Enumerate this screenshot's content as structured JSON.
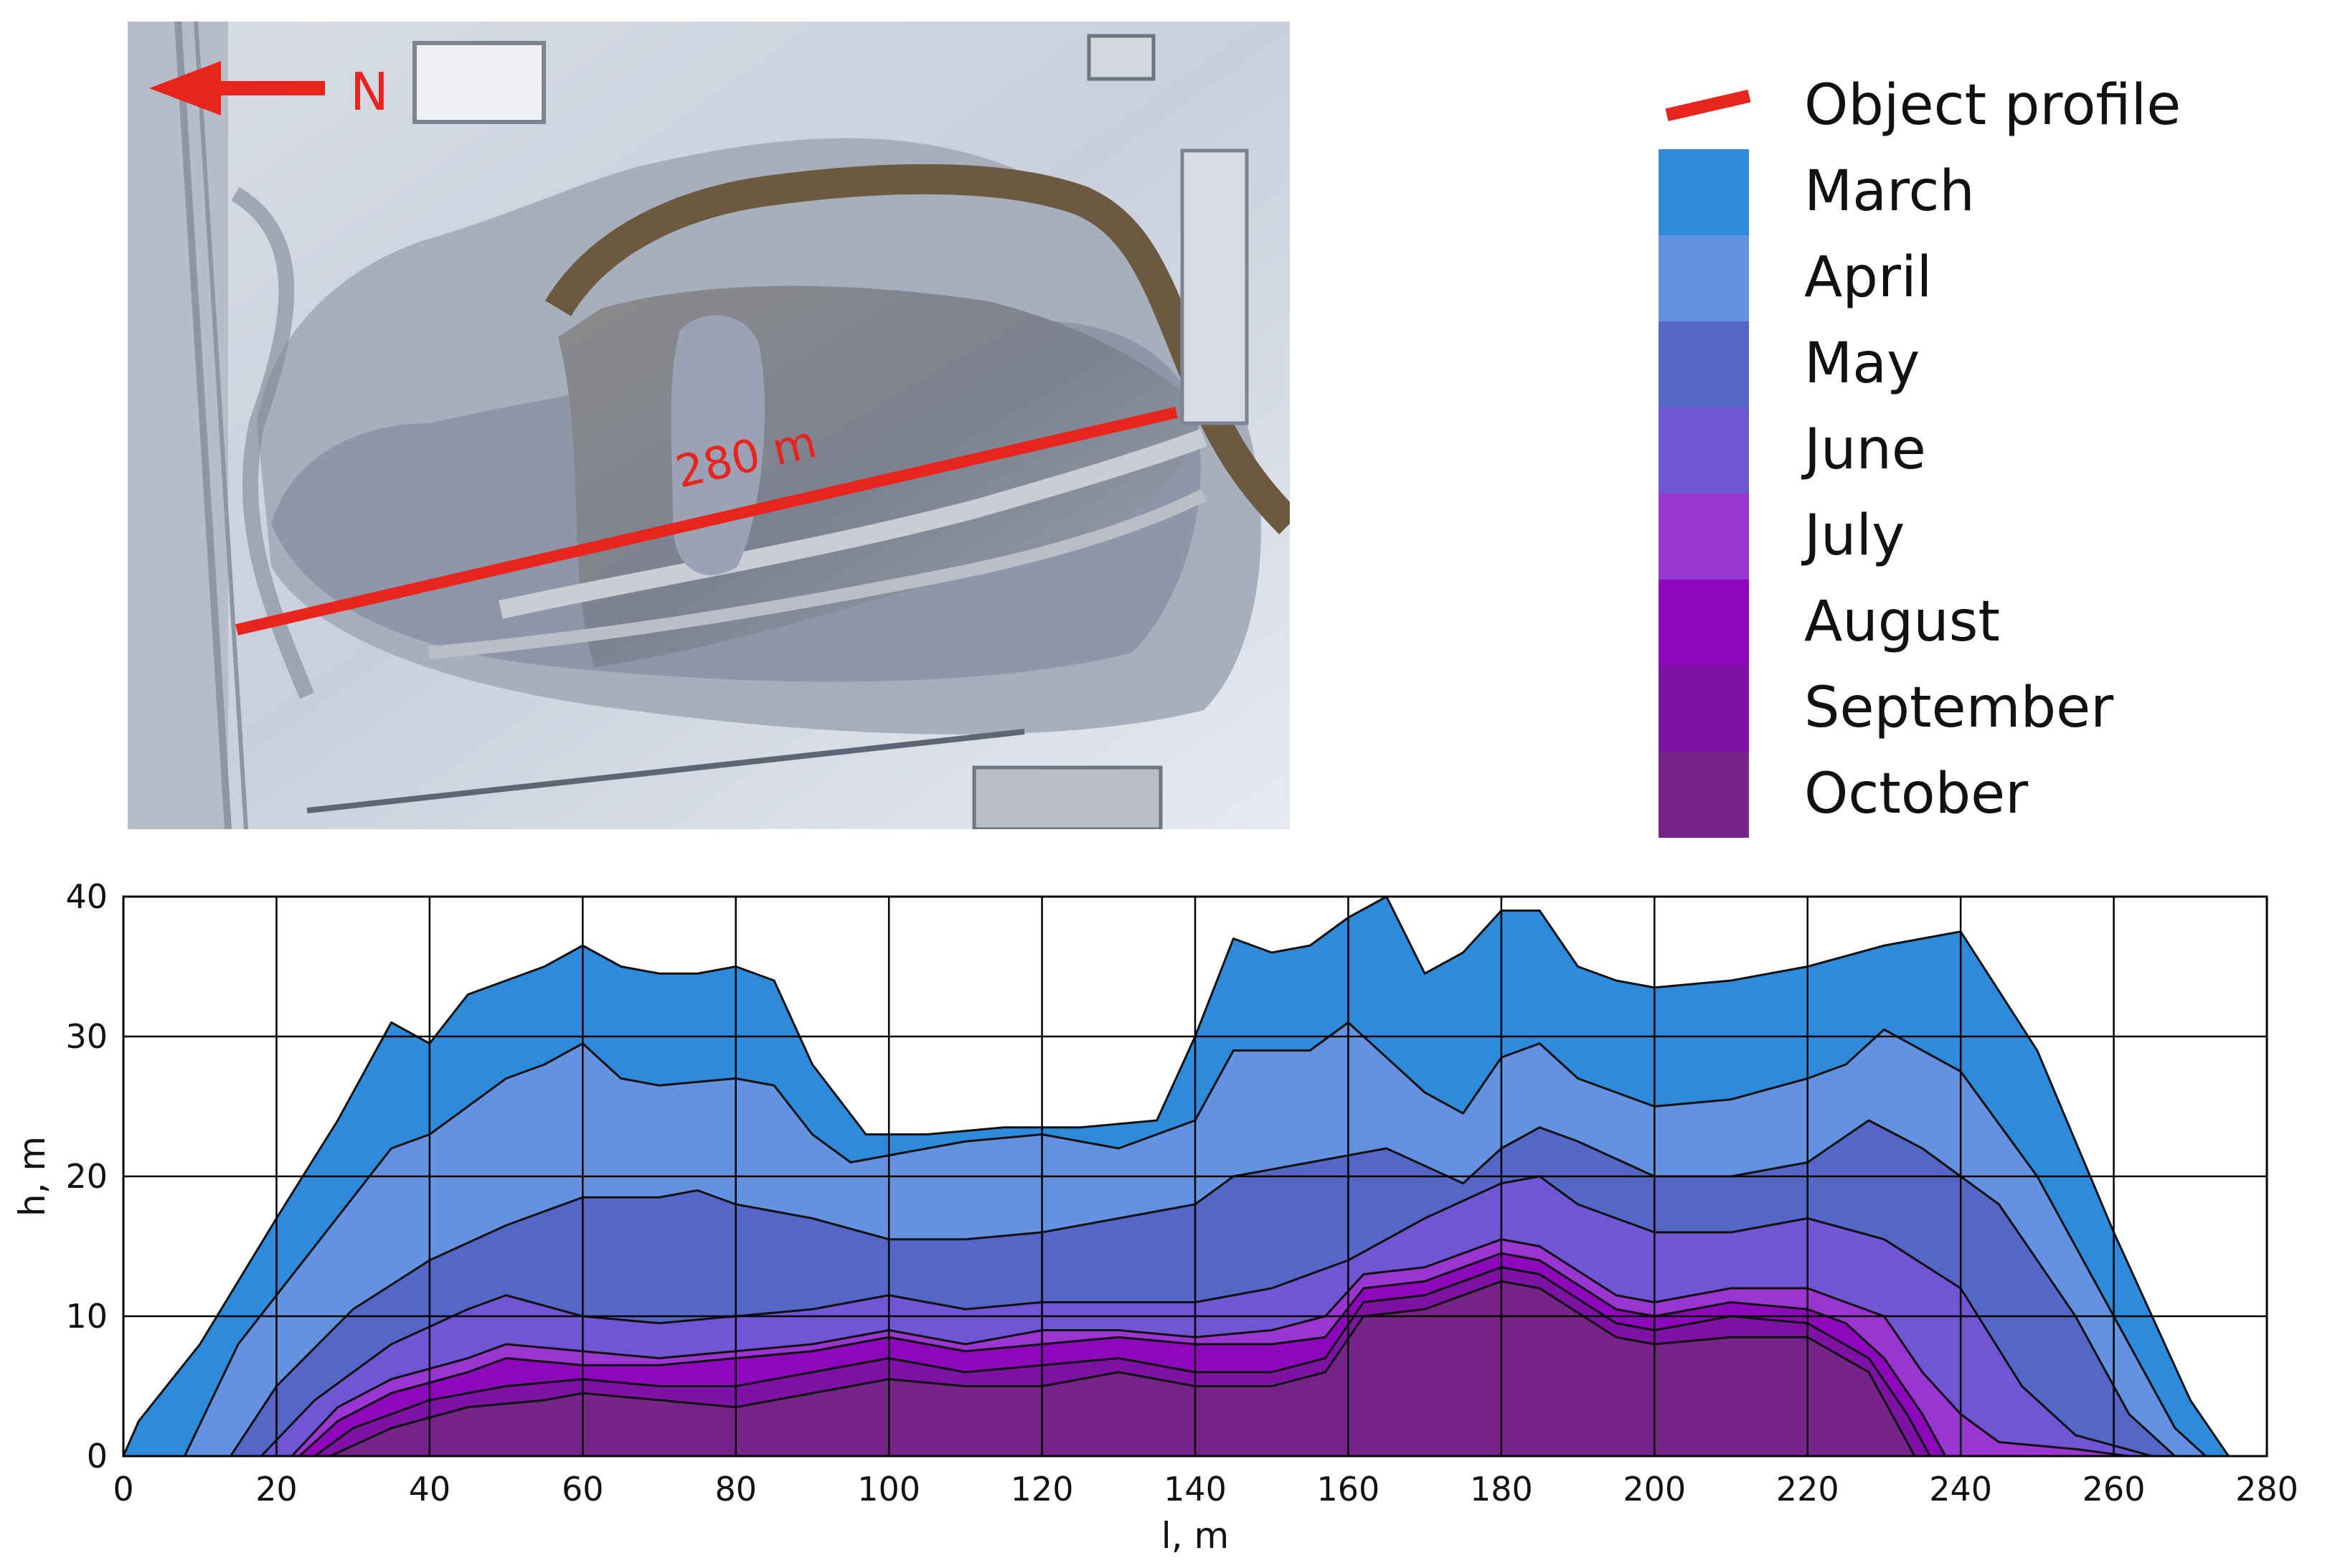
{
  "photo": {
    "north_label": "N",
    "profile_length_label": "280 m"
  },
  "legend": {
    "profile_label": "Object profile",
    "colors": {
      "profile_line": "#e8241f"
    },
    "months": [
      {
        "label": "March",
        "color": "#2e8bdc"
      },
      {
        "label": "April",
        "color": "#6592e0"
      },
      {
        "label": "May",
        "color": "#5567c6"
      },
      {
        "label": "June",
        "color": "#6f56d4"
      },
      {
        "label": "July",
        "color": "#9b35d2"
      },
      {
        "label": "August",
        "color": "#8d08bb"
      },
      {
        "label": "September",
        "color": "#7d12a5"
      },
      {
        "label": "October",
        "color": "#762488"
      }
    ]
  },
  "chart_data": {
    "type": "area",
    "xlabel": "l, m",
    "ylabel": "h, m",
    "xlim": [
      0,
      280
    ],
    "ylim": [
      0,
      40
    ],
    "xticks": [
      0,
      20,
      40,
      60,
      80,
      100,
      120,
      140,
      160,
      180,
      200,
      220,
      240,
      260,
      280
    ],
    "yticks": [
      0,
      10,
      20,
      30,
      40
    ],
    "grid": true,
    "series": [
      {
        "name": "March",
        "color": "#2e8bdc",
        "points": [
          [
            0,
            0
          ],
          [
            2,
            2.5
          ],
          [
            10,
            8
          ],
          [
            20,
            17
          ],
          [
            28,
            24
          ],
          [
            35,
            31
          ],
          [
            40,
            29.5
          ],
          [
            45,
            33
          ],
          [
            50,
            34
          ],
          [
            55,
            35
          ],
          [
            60,
            36.5
          ],
          [
            65,
            35
          ],
          [
            70,
            34.5
          ],
          [
            75,
            34.5
          ],
          [
            80,
            35
          ],
          [
            85,
            34
          ],
          [
            90,
            28
          ],
          [
            97,
            23
          ],
          [
            105,
            23
          ],
          [
            115,
            23.5
          ],
          [
            125,
            23.5
          ],
          [
            135,
            24
          ],
          [
            140,
            30
          ],
          [
            145,
            37
          ],
          [
            150,
            36
          ],
          [
            155,
            36.5
          ],
          [
            160,
            38.5
          ],
          [
            165,
            40
          ],
          [
            170,
            34.5
          ],
          [
            175,
            36
          ],
          [
            180,
            39
          ],
          [
            185,
            39
          ],
          [
            190,
            35
          ],
          [
            195,
            34
          ],
          [
            200,
            33.5
          ],
          [
            210,
            34
          ],
          [
            220,
            35
          ],
          [
            230,
            36.5
          ],
          [
            240,
            37.5
          ],
          [
            250,
            29
          ],
          [
            260,
            16
          ],
          [
            270,
            4
          ],
          [
            275,
            0
          ]
        ]
      },
      {
        "name": "April",
        "color": "#6592e0",
        "points": [
          [
            8,
            0
          ],
          [
            15,
            8
          ],
          [
            25,
            15
          ],
          [
            35,
            22
          ],
          [
            40,
            23
          ],
          [
            50,
            27
          ],
          [
            55,
            28
          ],
          [
            60,
            29.5
          ],
          [
            65,
            27
          ],
          [
            70,
            26.5
          ],
          [
            80,
            27
          ],
          [
            85,
            26.5
          ],
          [
            90,
            23
          ],
          [
            95,
            21
          ],
          [
            100,
            21.5
          ],
          [
            110,
            22.5
          ],
          [
            120,
            23
          ],
          [
            130,
            22
          ],
          [
            140,
            24
          ],
          [
            145,
            29
          ],
          [
            155,
            29
          ],
          [
            160,
            31
          ],
          [
            170,
            26
          ],
          [
            175,
            24.5
          ],
          [
            180,
            28.5
          ],
          [
            185,
            29.5
          ],
          [
            190,
            27
          ],
          [
            200,
            25
          ],
          [
            210,
            25.5
          ],
          [
            220,
            27
          ],
          [
            225,
            28
          ],
          [
            230,
            30.5
          ],
          [
            240,
            27.5
          ],
          [
            250,
            20
          ],
          [
            260,
            10
          ],
          [
            268,
            2
          ],
          [
            272,
            0
          ]
        ]
      },
      {
        "name": "May",
        "color": "#5567c6",
        "points": [
          [
            14,
            0
          ],
          [
            20,
            5
          ],
          [
            30,
            10.5
          ],
          [
            40,
            14
          ],
          [
            50,
            16.5
          ],
          [
            55,
            17.5
          ],
          [
            60,
            18.5
          ],
          [
            70,
            18.5
          ],
          [
            75,
            19
          ],
          [
            80,
            18
          ],
          [
            90,
            17
          ],
          [
            100,
            15.5
          ],
          [
            110,
            15.5
          ],
          [
            120,
            16
          ],
          [
            130,
            17
          ],
          [
            140,
            18
          ],
          [
            145,
            20
          ],
          [
            155,
            21
          ],
          [
            165,
            22
          ],
          [
            175,
            19.5
          ],
          [
            180,
            22
          ],
          [
            185,
            23.5
          ],
          [
            190,
            22.5
          ],
          [
            200,
            20
          ],
          [
            210,
            20
          ],
          [
            220,
            21
          ],
          [
            228,
            24
          ],
          [
            235,
            22
          ],
          [
            245,
            18
          ],
          [
            255,
            10
          ],
          [
            262,
            3
          ],
          [
            268,
            0
          ]
        ]
      },
      {
        "name": "June",
        "color": "#6f56d4",
        "points": [
          [
            18,
            0
          ],
          [
            25,
            4
          ],
          [
            35,
            8
          ],
          [
            45,
            10.5
          ],
          [
            50,
            11.5
          ],
          [
            60,
            10
          ],
          [
            70,
            9.5
          ],
          [
            80,
            10
          ],
          [
            90,
            10.5
          ],
          [
            100,
            11.5
          ],
          [
            110,
            10.5
          ],
          [
            120,
            11
          ],
          [
            130,
            11
          ],
          [
            140,
            11
          ],
          [
            150,
            12
          ],
          [
            160,
            14
          ],
          [
            170,
            17
          ],
          [
            180,
            19.5
          ],
          [
            185,
            20
          ],
          [
            190,
            18
          ],
          [
            200,
            16
          ],
          [
            210,
            16
          ],
          [
            220,
            17
          ],
          [
            230,
            15.5
          ],
          [
            240,
            12
          ],
          [
            248,
            5
          ],
          [
            255,
            1.5
          ],
          [
            265,
            0
          ]
        ]
      },
      {
        "name": "July",
        "color": "#9b35d2",
        "points": [
          [
            22,
            0
          ],
          [
            28,
            3.5
          ],
          [
            35,
            5.5
          ],
          [
            45,
            7
          ],
          [
            50,
            8
          ],
          [
            60,
            7.5
          ],
          [
            70,
            7
          ],
          [
            80,
            7.5
          ],
          [
            90,
            8
          ],
          [
            100,
            9
          ],
          [
            110,
            8
          ],
          [
            120,
            9
          ],
          [
            130,
            9
          ],
          [
            140,
            8.5
          ],
          [
            150,
            9
          ],
          [
            157,
            10
          ],
          [
            162,
            13
          ],
          [
            170,
            13.5
          ],
          [
            180,
            15.5
          ],
          [
            185,
            15
          ],
          [
            195,
            11.5
          ],
          [
            200,
            11
          ],
          [
            210,
            12
          ],
          [
            220,
            12
          ],
          [
            230,
            10
          ],
          [
            235,
            6
          ],
          [
            240,
            3
          ],
          [
            245,
            1
          ],
          [
            255,
            0.5
          ],
          [
            262,
            0
          ]
        ]
      },
      {
        "name": "August",
        "color": "#8d08bb",
        "points": [
          [
            23,
            0
          ],
          [
            28,
            2.5
          ],
          [
            35,
            4.5
          ],
          [
            45,
            6
          ],
          [
            50,
            7
          ],
          [
            60,
            6.5
          ],
          [
            70,
            6.5
          ],
          [
            80,
            7
          ],
          [
            90,
            7.5
          ],
          [
            100,
            8.5
          ],
          [
            110,
            7.5
          ],
          [
            120,
            8
          ],
          [
            130,
            8.5
          ],
          [
            140,
            8
          ],
          [
            150,
            8
          ],
          [
            157,
            8.5
          ],
          [
            162,
            12
          ],
          [
            170,
            12.5
          ],
          [
            180,
            14.5
          ],
          [
            185,
            14
          ],
          [
            195,
            10.5
          ],
          [
            200,
            10
          ],
          [
            210,
            11
          ],
          [
            220,
            10.5
          ],
          [
            225,
            9.5
          ],
          [
            230,
            7
          ],
          [
            235,
            3
          ],
          [
            238,
            0
          ]
        ]
      },
      {
        "name": "September",
        "color": "#7d12a5",
        "points": [
          [
            25,
            0
          ],
          [
            30,
            2
          ],
          [
            40,
            4
          ],
          [
            50,
            5
          ],
          [
            60,
            5.5
          ],
          [
            70,
            5
          ],
          [
            80,
            5
          ],
          [
            90,
            6
          ],
          [
            100,
            7
          ],
          [
            110,
            6
          ],
          [
            120,
            6.5
          ],
          [
            130,
            7
          ],
          [
            140,
            6
          ],
          [
            150,
            6
          ],
          [
            157,
            7
          ],
          [
            162,
            11
          ],
          [
            170,
            11.5
          ],
          [
            180,
            13.5
          ],
          [
            185,
            13
          ],
          [
            195,
            9.5
          ],
          [
            200,
            9
          ],
          [
            210,
            10
          ],
          [
            220,
            9.5
          ],
          [
            228,
            7
          ],
          [
            233,
            3
          ],
          [
            236,
            0
          ]
        ]
      },
      {
        "name": "October",
        "color": "#762488",
        "points": [
          [
            27,
            0
          ],
          [
            35,
            2
          ],
          [
            45,
            3.5
          ],
          [
            55,
            4
          ],
          [
            60,
            4.5
          ],
          [
            70,
            4
          ],
          [
            80,
            3.5
          ],
          [
            90,
            4.5
          ],
          [
            100,
            5.5
          ],
          [
            110,
            5
          ],
          [
            120,
            5
          ],
          [
            130,
            6
          ],
          [
            140,
            5
          ],
          [
            150,
            5
          ],
          [
            157,
            6
          ],
          [
            162,
            10
          ],
          [
            170,
            10.5
          ],
          [
            180,
            12.5
          ],
          [
            185,
            12
          ],
          [
            195,
            8.5
          ],
          [
            200,
            8
          ],
          [
            210,
            8.5
          ],
          [
            220,
            8.5
          ],
          [
            228,
            6
          ],
          [
            232,
            2
          ],
          [
            234,
            0
          ]
        ]
      }
    ]
  }
}
